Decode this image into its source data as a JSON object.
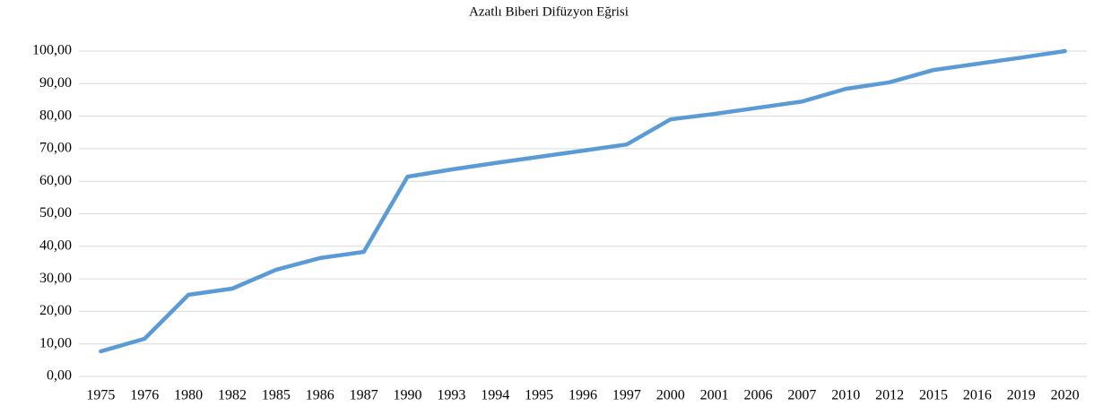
{
  "chart_data": {
    "type": "line",
    "title": "Azatlı Biberi Difüzyon Eğrisi",
    "categories": [
      "1975",
      "1976",
      "1980",
      "1982",
      "1985",
      "1986",
      "1987",
      "1990",
      "1993",
      "1994",
      "1995",
      "1996",
      "1997",
      "2000",
      "2001",
      "2006",
      "2007",
      "2010",
      "2012",
      "2015",
      "2016",
      "2019",
      "2020"
    ],
    "series": [
      {
        "name": "Azatlı Biberi",
        "color": "#5b9bd5",
        "values": [
          7.7,
          11.6,
          25.1,
          27,
          32.8,
          36.4,
          38.3,
          61.4,
          63.6,
          65.6,
          67.5,
          69.4,
          71.3,
          79,
          80.7,
          82.6,
          84.5,
          88.4,
          90.4,
          94.2,
          96.1,
          98,
          100
        ]
      }
    ],
    "ylim": [
      0,
      100
    ],
    "yticks": [
      {
        "value": 0,
        "label": "0,00"
      },
      {
        "value": 10,
        "label": "10,00"
      },
      {
        "value": 20,
        "label": "20,00"
      },
      {
        "value": 30,
        "label": "30,00"
      },
      {
        "value": 40,
        "label": "40,00"
      },
      {
        "value": 50,
        "label": "50,00"
      },
      {
        "value": 60,
        "label": "60,00"
      },
      {
        "value": 70,
        "label": "70,00"
      },
      {
        "value": 80,
        "label": "80,00"
      },
      {
        "value": 90,
        "label": "90,00"
      },
      {
        "value": 100,
        "label": "100,00"
      }
    ],
    "grid": true
  }
}
